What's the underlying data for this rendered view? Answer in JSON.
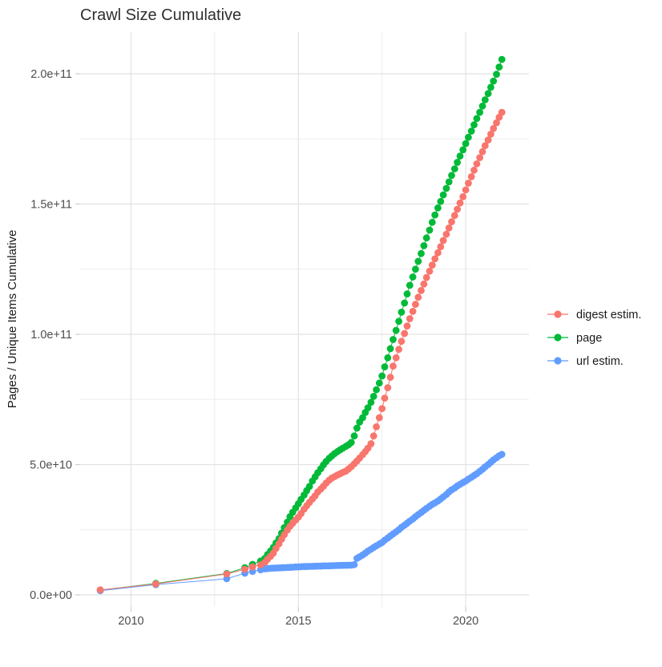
{
  "title": "Crawl Size Cumulative",
  "y_axis": {
    "label": "Pages / Unique Items Cumulative",
    "tick_labels": [
      "0.0e+00",
      "5.0e+10",
      "1.0e+11",
      "1.5e+11",
      "2.0e+11"
    ],
    "tick_values_billions": [
      0,
      50,
      100,
      150,
      200
    ],
    "minor_tick_values_billions": [
      25,
      75,
      125,
      175
    ]
  },
  "x_axis": {
    "tick_labels": [
      "2010",
      "2015",
      "2020"
    ],
    "tick_values": [
      2010,
      2015,
      2020
    ],
    "minor_tick_values": [
      2012.5,
      2017.5
    ]
  },
  "legend": {
    "position": "right",
    "items": [
      {
        "label": "digest estim.",
        "color": "#F8766D"
      },
      {
        "label": "page",
        "color": "#00BA38"
      },
      {
        "label": "url estim.",
        "color": "#619CFF"
      }
    ]
  },
  "chart_data": {
    "type": "scatter",
    "title": "Crawl Size Cumulative",
    "xlabel": "",
    "ylabel": "Pages / Unique Items Cumulative",
    "xlim": [
      2008.5,
      2021.9
    ],
    "ylim_billions": [
      0,
      216
    ],
    "grid": true,
    "legend_position": "right",
    "y_unit": "pages / unique items, values in billions (1e9)",
    "x": [
      2009.08,
      2010.74,
      2012.86,
      2013.4,
      2013.63,
      2013.87,
      2014,
      2014.08,
      2014.17,
      2014.25,
      2014.33,
      2014.42,
      2014.5,
      2014.58,
      2014.67,
      2014.75,
      2014.83,
      2014.92,
      2015,
      2015.08,
      2015.17,
      2015.25,
      2015.33,
      2015.42,
      2015.5,
      2015.58,
      2015.67,
      2015.75,
      2015.83,
      2015.92,
      2016,
      2016.08,
      2016.17,
      2016.25,
      2016.33,
      2016.42,
      2016.5,
      2016.58,
      2016.67,
      2016.75,
      2016.83,
      2016.92,
      2017,
      2017.08,
      2017.17,
      2017.25,
      2017.33,
      2017.42,
      2017.5,
      2017.58,
      2017.67,
      2017.75,
      2017.83,
      2017.92,
      2018,
      2018.08,
      2018.17,
      2018.25,
      2018.33,
      2018.42,
      2018.5,
      2018.58,
      2018.67,
      2018.75,
      2018.83,
      2018.92,
      2019,
      2019.08,
      2019.17,
      2019.25,
      2019.33,
      2019.42,
      2019.5,
      2019.58,
      2019.67,
      2019.75,
      2019.83,
      2019.92,
      2020,
      2020.08,
      2020.17,
      2020.25,
      2020.33,
      2020.42,
      2020.5,
      2020.58,
      2020.67,
      2020.75,
      2020.83,
      2020.92,
      2021,
      2021.08
    ],
    "series": [
      {
        "name": "digest estim.",
        "color": "#F8766D",
        "values_billions": [
          1.9,
          4.2,
          8,
          9.8,
          10.7,
          11.5,
          12.5,
          13.7,
          14.8,
          16,
          17.8,
          19.6,
          21.4,
          23.1,
          24.9,
          26.3,
          27.5,
          28.7,
          29.8,
          31.2,
          32.9,
          34.2,
          35.5,
          36.8,
          38,
          39.5,
          40.6,
          41.7,
          42.9,
          44,
          44.8,
          45.4,
          46,
          46.5,
          47,
          47.5,
          48.3,
          49.2,
          50.3,
          51.4,
          52.5,
          53.8,
          55,
          56.3,
          58,
          61,
          64.5,
          68,
          71.5,
          75.5,
          79.5,
          83.5,
          87.8,
          91,
          94.2,
          97.3,
          100.3,
          103.2,
          106,
          108.8,
          111.5,
          114.2,
          116.8,
          119.3,
          121.8,
          124.2,
          126.6,
          129,
          131.3,
          133.6,
          136,
          138.4,
          140.8,
          143.2,
          145.6,
          148,
          150.4,
          152.8,
          155.4,
          158,
          160.5,
          163,
          165.4,
          167.8,
          170.1,
          172.4,
          174.6,
          176.8,
          179,
          181.2,
          183.3,
          185.2
        ]
      },
      {
        "name": "page",
        "color": "#00BA38",
        "values_billions": [
          1.8,
          4.4,
          8.2,
          10.4,
          11.7,
          13,
          14,
          15.5,
          16.8,
          18.2,
          19.9,
          21.6,
          23.7,
          25.8,
          27.9,
          30,
          31.7,
          33.4,
          35,
          36.6,
          38.3,
          40,
          41.6,
          43.7,
          45.3,
          46.9,
          48.4,
          49.9,
          51.2,
          52.4,
          53.3,
          54.2,
          55,
          55.7,
          56.3,
          57,
          57.6,
          58.5,
          61,
          64,
          66.3,
          68,
          70,
          71.8,
          73.9,
          76.2,
          78.7,
          81.3,
          84,
          87.5,
          91,
          94.5,
          98,
          101.5,
          105,
          108.5,
          112,
          115.5,
          118.8,
          122,
          125,
          128,
          131,
          134,
          137,
          140,
          143,
          145.8,
          148.5,
          151,
          153.5,
          156,
          158.5,
          161,
          163.5,
          166,
          168.4,
          170.8,
          173.2,
          175.6,
          178,
          180.4,
          182.8,
          185.2,
          187.6,
          190,
          192.4,
          194.8,
          197.2,
          199.8,
          202.6,
          205.5
        ]
      },
      {
        "name": "url estim.",
        "color": "#619CFF",
        "values_billions": [
          1.6,
          3.9,
          6.2,
          8.3,
          9,
          9.6,
          10,
          10.1,
          10.2,
          10.25,
          10.3,
          10.35,
          10.4,
          10.45,
          10.5,
          10.55,
          10.6,
          10.7,
          10.75,
          10.8,
          10.85,
          10.9,
          10.92,
          10.95,
          11,
          11.02,
          11.05,
          11.1,
          11.12,
          11.15,
          11.2,
          11.22,
          11.25,
          11.3,
          11.32,
          11.35,
          11.38,
          11.4,
          11.6,
          14,
          14.6,
          15.3,
          16,
          16.8,
          17.5,
          18.2,
          18.8,
          19.5,
          20.1,
          21,
          21.8,
          22.6,
          23.4,
          24.2,
          25,
          25.9,
          26.7,
          27.5,
          28.3,
          29.1,
          30,
          30.8,
          31.6,
          32.4,
          33.2,
          34,
          34.7,
          35.3,
          36,
          36.8,
          37.6,
          38.5,
          39.5,
          40.3,
          41,
          41.8,
          42.4,
          43.1,
          43.7,
          44.4,
          45.1,
          45.8,
          46.5,
          47.4,
          48.2,
          49.1,
          50,
          50.9,
          51.8,
          52.6,
          53.4,
          53.9
        ]
      }
    ]
  }
}
